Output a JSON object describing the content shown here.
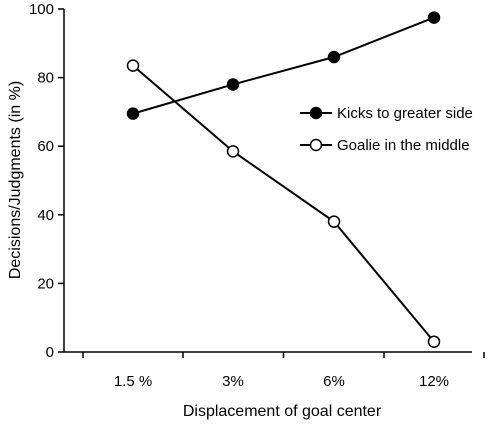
{
  "chart_data": {
    "type": "line",
    "title": "",
    "xlabel": "Displacement of goal center",
    "ylabel": "Decisions/Judgments (in %)",
    "categories": [
      "1.5 %",
      "3%",
      "6%",
      "12%"
    ],
    "ylim": [
      0,
      100
    ],
    "yticks": [
      0,
      20,
      40,
      60,
      80,
      100
    ],
    "grid": false,
    "legend_position": "right",
    "series": [
      {
        "name": "Kicks to greater side",
        "marker": "filled-circle",
        "color": "#000000",
        "values": [
          69.5,
          78,
          86,
          97.5
        ]
      },
      {
        "name": "Goalie in the middle",
        "marker": "open-circle",
        "color": "#000000",
        "values": [
          83.5,
          58.5,
          38,
          3
        ]
      }
    ]
  }
}
